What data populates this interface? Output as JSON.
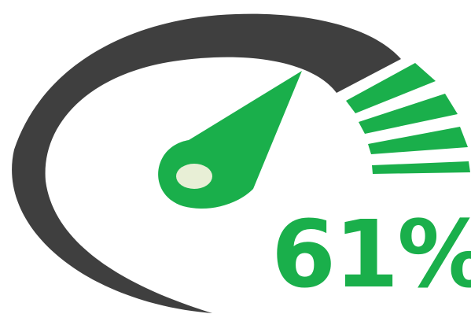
{
  "gauge": {
    "value_label": "61%",
    "value_percent": 61,
    "tick_count": 5
  },
  "colors": {
    "arc": "#3f3f3f",
    "accent": "#1aaf4b",
    "hub": "#e8efd6",
    "background": "#ffffff"
  }
}
